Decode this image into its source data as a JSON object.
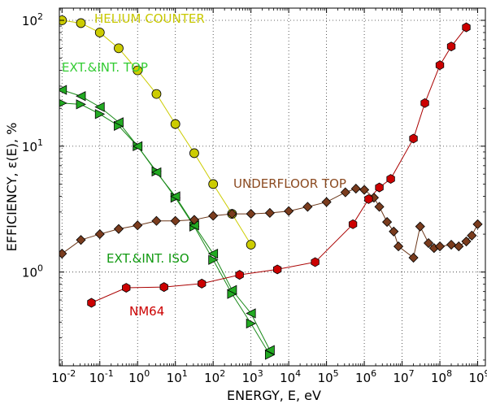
{
  "chart_data": {
    "type": "scatter",
    "title": "",
    "xlabel": "ENERGY,  E,  eV",
    "ylabel": "EFFICIENCY,  ε(E),  %",
    "xscale": "log",
    "yscale": "log",
    "xlim": [
      0.0085,
      1600000000.0
    ],
    "ylim": [
      0.18,
      125
    ],
    "grid": true,
    "x_ticks": [
      {
        "base": "10",
        "exp": "-2"
      },
      {
        "base": "10",
        "exp": "-1"
      },
      {
        "base": "10",
        "exp": "0"
      },
      {
        "base": "10",
        "exp": "1"
      },
      {
        "base": "10",
        "exp": "2"
      },
      {
        "base": "10",
        "exp": "3"
      },
      {
        "base": "10",
        "exp": "4"
      },
      {
        "base": "10",
        "exp": "5"
      },
      {
        "base": "10",
        "exp": "6"
      },
      {
        "base": "10",
        "exp": "7"
      },
      {
        "base": "10",
        "exp": "8"
      },
      {
        "base": "10",
        "exp": "9"
      }
    ],
    "y_ticks": [
      {
        "base": "10",
        "exp": "0"
      },
      {
        "base": "10",
        "exp": "1"
      },
      {
        "base": "10",
        "exp": "2"
      }
    ],
    "series": [
      {
        "name": "HELIUM COUNTER",
        "marker": "circle",
        "color": "#cccc00",
        "line_color": "#cccc00",
        "label_color": "#c8c800",
        "points": [
          [
            0.01,
            100
          ],
          [
            0.0316,
            95
          ],
          [
            0.1,
            80
          ],
          [
            0.316,
            60
          ],
          [
            1,
            40
          ],
          [
            3.16,
            26
          ],
          [
            10,
            15
          ],
          [
            31.6,
            8.8
          ],
          [
            100,
            5
          ],
          [
            316,
            2.9
          ],
          [
            1000,
            1.65
          ]
        ]
      },
      {
        "name": "EXT.&INT. TOP",
        "marker": "triangle-right",
        "color": "#22aa22",
        "line_color": "#1a8a1a",
        "label_color": "#33cc33",
        "points": [
          [
            0.01,
            22
          ],
          [
            0.0316,
            21.5
          ],
          [
            0.1,
            18
          ],
          [
            0.316,
            14.5
          ],
          [
            1,
            10
          ],
          [
            3.16,
            6.3
          ],
          [
            10,
            3.9
          ],
          [
            31.6,
            2.3
          ],
          [
            100,
            1.25
          ],
          [
            316,
            0.67
          ],
          [
            1000,
            0.39
          ],
          [
            3160,
            0.22
          ]
        ]
      },
      {
        "name": "EXT.&INT. ISO",
        "marker": "triangle-left",
        "color": "#22aa22",
        "line_color": "#1a8a1a",
        "label_color": "#119911",
        "points": [
          [
            0.01,
            28
          ],
          [
            0.0316,
            25
          ],
          [
            0.1,
            20.5
          ],
          [
            0.316,
            15.5
          ],
          [
            1,
            10
          ],
          [
            3.16,
            6.2
          ],
          [
            10,
            4
          ],
          [
            31.6,
            2.35
          ],
          [
            100,
            1.4
          ],
          [
            316,
            0.72
          ],
          [
            1000,
            0.47
          ],
          [
            3160,
            0.24
          ]
        ]
      },
      {
        "name": "UNDERFLOOR TOP",
        "marker": "diamond",
        "color": "#7a3c1e",
        "line_color": "#6b3618",
        "label_color": "#8b4a20",
        "points": [
          [
            0.01,
            1.4
          ],
          [
            0.0316,
            1.8
          ],
          [
            0.1,
            2.0
          ],
          [
            0.316,
            2.2
          ],
          [
            1,
            2.35
          ],
          [
            3.16,
            2.55
          ],
          [
            10,
            2.55
          ],
          [
            31.6,
            2.6
          ],
          [
            100,
            2.8
          ],
          [
            316,
            2.9
          ],
          [
            1000,
            2.9
          ],
          [
            3160,
            2.95
          ],
          [
            10000,
            3.05
          ],
          [
            31600,
            3.3
          ],
          [
            100000,
            3.6
          ],
          [
            316000,
            4.3
          ],
          [
            600000,
            4.6
          ],
          [
            1000000,
            4.5
          ],
          [
            1800000,
            3.9
          ],
          [
            2500000,
            3.3
          ],
          [
            4000000,
            2.5
          ],
          [
            6000000,
            2.1
          ],
          [
            8000000,
            1.6
          ],
          [
            20000000,
            1.3
          ],
          [
            30000000,
            2.3
          ],
          [
            50000000,
            1.7
          ],
          [
            70000000,
            1.55
          ],
          [
            100000000,
            1.6
          ],
          [
            200000000,
            1.65
          ],
          [
            316000000,
            1.6
          ],
          [
            500000000,
            1.75
          ],
          [
            700000000,
            1.95
          ],
          [
            1000000000,
            2.4
          ]
        ]
      },
      {
        "name": "NM64",
        "marker": "hexagon",
        "color": "#cc0000",
        "line_color": "#aa0000",
        "label_color": "#cc0000",
        "points": [
          [
            0.06,
            0.57
          ],
          [
            0.5,
            0.75
          ],
          [
            5,
            0.76
          ],
          [
            50,
            0.81
          ],
          [
            500,
            0.95
          ],
          [
            5000,
            1.05
          ],
          [
            50000,
            1.2
          ],
          [
            500000,
            2.4
          ],
          [
            1300000,
            3.8
          ],
          [
            2500000,
            4.7
          ],
          [
            5000000,
            5.5
          ],
          [
            20000000,
            11.5
          ],
          [
            40000000,
            22
          ],
          [
            100000000,
            44
          ],
          [
            200000000,
            62
          ],
          [
            500000000,
            88
          ]
        ]
      }
    ]
  }
}
